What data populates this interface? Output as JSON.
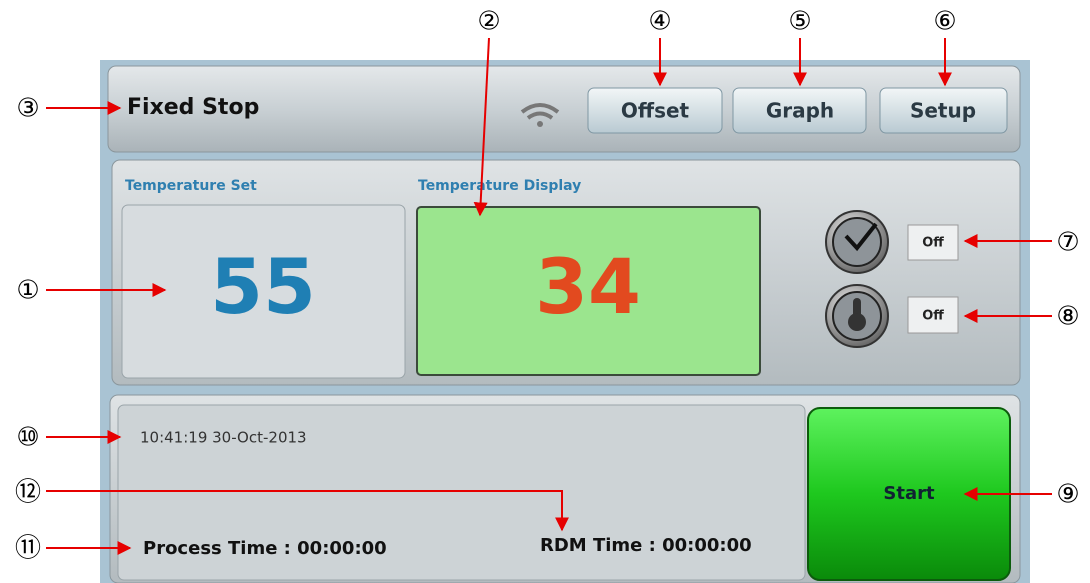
{
  "header": {
    "title": "Fixed Stop",
    "buttons": [
      "Offset",
      "Graph",
      "Setup"
    ]
  },
  "temperature_set": {
    "label": "Temperature Set",
    "value": 55
  },
  "temperature_display": {
    "label": "Temperature Display",
    "value": 34
  },
  "toggles": [
    {
      "status": "Off"
    },
    {
      "status": "Off"
    }
  ],
  "status": {
    "datetime": "10:41:19 30-Oct-2013",
    "process_time": "Process Time : 00:00:00",
    "rdm_time": "RDM Time : 00:00:00"
  },
  "start_button": "Start",
  "callouts": [
    "①",
    "②",
    "③",
    "④",
    "⑤",
    "⑥",
    "⑦",
    "⑧",
    "⑨",
    "⑩",
    "⑪",
    "⑫"
  ]
}
